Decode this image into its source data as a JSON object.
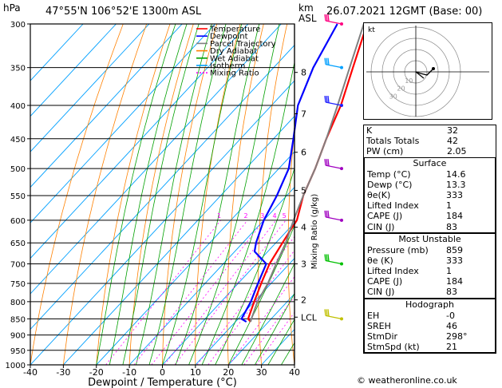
{
  "header": {
    "left_unit": "hPa",
    "location": "47°55'N  106°52'E  1300m  ASL",
    "km_label": "km",
    "asl_label": "ASL",
    "datetime": "26.07.2021  12GMT  (Base: 00)"
  },
  "legend": [
    {
      "label": "Temperature",
      "color": "#ff0000"
    },
    {
      "label": "Dewpoint",
      "color": "#0000ff"
    },
    {
      "label": "Parcel Trajectory",
      "color": "#808080"
    },
    {
      "label": "Dry Adiabat",
      "color": "#ff8000"
    },
    {
      "label": "Wet Adiabat",
      "color": "#00a000"
    },
    {
      "label": "Isotherm",
      "color": "#00a0ff"
    },
    {
      "label": "Mixing Ratio",
      "color": "#ff00ff"
    }
  ],
  "chart_data": {
    "type": "line",
    "title": "",
    "xlabel": "Dewpoint / Temperature (°C)",
    "ylabel": "hPa",
    "xlim": [
      -40,
      40
    ],
    "ylim": [
      1000,
      300
    ],
    "x_ticks": [
      "-40",
      "-30",
      "-20",
      "-10",
      "0",
      "10",
      "20",
      "30",
      "40"
    ],
    "pressure_ticks": [
      "300",
      "350",
      "400",
      "450",
      "500",
      "550",
      "600",
      "650",
      "700",
      "750",
      "800",
      "850",
      "900",
      "950",
      "1000"
    ],
    "km_ticks": [
      {
        "km": "8",
        "p": 356
      },
      {
        "km": "7",
        "p": 412
      },
      {
        "km": "6",
        "p": 472
      },
      {
        "km": "5",
        "p": 540
      },
      {
        "km": "4",
        "p": 615
      },
      {
        "km": "3",
        "p": 700
      },
      {
        "km": "2",
        "p": 795
      },
      {
        "km": "LCL",
        "p": 845
      }
    ],
    "mixing_ratio_label": "Mixing Ratio  (g/kg)",
    "mixing_ratio_values": [
      "1",
      "2",
      "3",
      "4",
      "5",
      "8",
      "10",
      "15",
      "20",
      "25"
    ],
    "series": [
      {
        "name": "Temperature",
        "color": "#ff0000",
        "points": [
          [
            14.6,
            859
          ],
          [
            13,
            850
          ],
          [
            10,
            800
          ],
          [
            7,
            750
          ],
          [
            4,
            700
          ],
          [
            2,
            650
          ],
          [
            0,
            600
          ],
          [
            -5,
            550
          ],
          [
            -9,
            500
          ],
          [
            -14,
            450
          ],
          [
            -19,
            400
          ],
          [
            -26,
            350
          ],
          [
            -34,
            300
          ]
        ]
      },
      {
        "name": "Dewpoint",
        "color": "#0000ff",
        "points": [
          [
            13.3,
            859
          ],
          [
            11,
            850
          ],
          [
            9,
            800
          ],
          [
            6,
            750
          ],
          [
            3,
            700
          ],
          [
            -4,
            670
          ],
          [
            -6,
            650
          ],
          [
            -10,
            600
          ],
          [
            -13,
            550
          ],
          [
            -17,
            500
          ],
          [
            -24,
            450
          ],
          [
            -32,
            400
          ],
          [
            -38,
            350
          ],
          [
            -43,
            300
          ]
        ]
      },
      {
        "name": "Parcel Trajectory",
        "color": "#808080",
        "points": [
          [
            14.6,
            859
          ],
          [
            14,
            850
          ],
          [
            11,
            800
          ],
          [
            9,
            750
          ],
          [
            6,
            700
          ],
          [
            3,
            650
          ],
          [
            -1,
            600
          ],
          [
            -5,
            550
          ],
          [
            -9,
            500
          ],
          [
            -14,
            450
          ],
          [
            -20,
            400
          ],
          [
            -27,
            350
          ],
          [
            -35,
            300
          ]
        ]
      }
    ],
    "wind_barbs": [
      {
        "p": 300,
        "color": "#ff0080"
      },
      {
        "p": 350,
        "color": "#00a0ff"
      },
      {
        "p": 400,
        "color": "#2020ff"
      },
      {
        "p": 500,
        "color": "#a000c0"
      },
      {
        "p": 600,
        "color": "#a000c0"
      },
      {
        "p": 700,
        "color": "#00c000"
      },
      {
        "p": 850,
        "color": "#c0c000"
      }
    ]
  },
  "hodograph": {
    "label": "kt",
    "ring_labels": [
      "10",
      "20",
      "30"
    ]
  },
  "indices": {
    "top": [
      {
        "label": "K",
        "value": "32"
      },
      {
        "label": "Totals Totals",
        "value": "42"
      },
      {
        "label": "PW (cm)",
        "value": "2.05"
      }
    ],
    "surface": {
      "title": "Surface",
      "rows": [
        {
          "label": "Temp (°C)",
          "value": "14.6"
        },
        {
          "label": "Dewp (°C)",
          "value": "13.3"
        },
        {
          "label": "θe(K)",
          "value": "333"
        },
        {
          "label": "Lifted Index",
          "value": "1"
        },
        {
          "label": "CAPE (J)",
          "value": "184"
        },
        {
          "label": "CIN (J)",
          "value": "83"
        }
      ]
    },
    "most_unstable": {
      "title": "Most Unstable",
      "rows": [
        {
          "label": "Pressure (mb)",
          "value": "859"
        },
        {
          "label": "θe (K)",
          "value": "333"
        },
        {
          "label": "Lifted Index",
          "value": "1"
        },
        {
          "label": "CAPE (J)",
          "value": "184"
        },
        {
          "label": "CIN (J)",
          "value": "83"
        }
      ]
    },
    "hodograph": {
      "title": "Hodograph",
      "rows": [
        {
          "label": "EH",
          "value": "-0"
        },
        {
          "label": "SREH",
          "value": "46"
        },
        {
          "label": "StmDir",
          "value": "298°"
        },
        {
          "label": "StmSpd (kt)",
          "value": "21"
        }
      ]
    }
  },
  "footer": "© weatheronline.co.uk"
}
